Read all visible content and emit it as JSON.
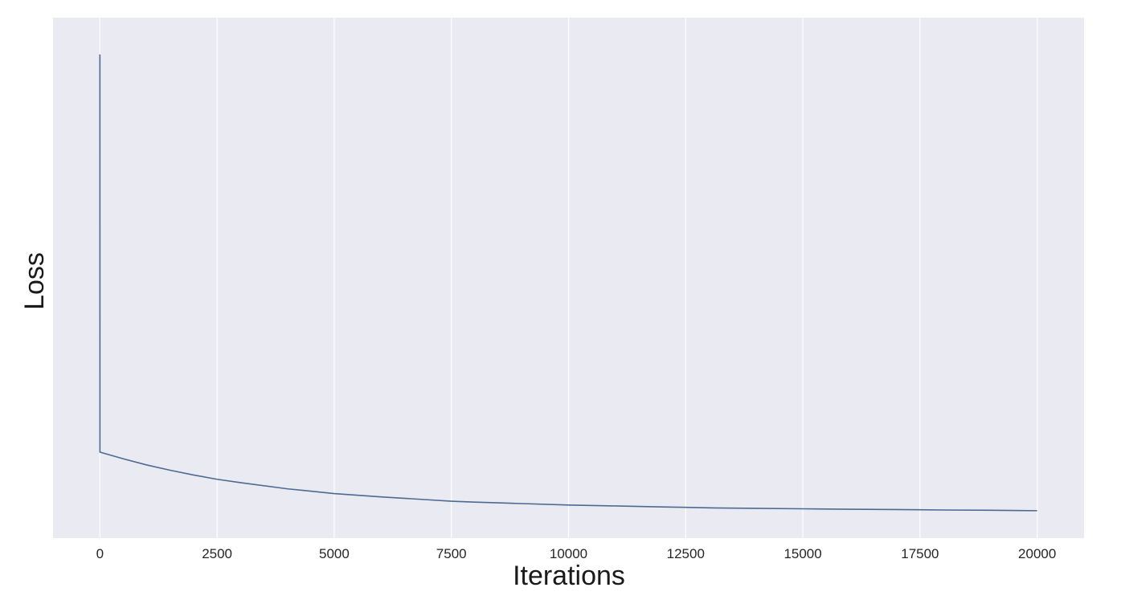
{
  "chart_data": {
    "type": "line",
    "title": "",
    "xlabel": "Iterations",
    "ylabel": "Loss",
    "xlim": [
      -1000,
      21000
    ],
    "ylim": [
      0,
      1
    ],
    "x_ticks": [
      0,
      2500,
      5000,
      7500,
      10000,
      12500,
      15000,
      17500,
      20000
    ],
    "x_tick_labels": [
      "0",
      "2500",
      "5000",
      "7500",
      "10000",
      "12500",
      "15000",
      "17500",
      "20000"
    ],
    "y_tick_labels_shown": false,
    "grid": "vertical",
    "legend": "none",
    "colors": {
      "plot_background": "#eaeaf2",
      "grid": "#ffffff",
      "line": "#4c6a92"
    },
    "series": [
      {
        "x": [
          0,
          1,
          500,
          1000,
          1500,
          2000,
          2500,
          3000,
          4000,
          5000,
          6000,
          7000,
          7500,
          8000,
          9000,
          10000,
          11000,
          12000,
          12500,
          13000,
          14000,
          15000,
          16000,
          17000,
          17500,
          18000,
          19000,
          20000
        ],
        "y": [
          0.97,
          0.135,
          0.121,
          0.108,
          0.097,
          0.087,
          0.078,
          0.071,
          0.058,
          0.048,
          0.041,
          0.035,
          0.032,
          0.03,
          0.027,
          0.024,
          0.022,
          0.02,
          0.019,
          0.018,
          0.017,
          0.016,
          0.015,
          0.0145,
          0.014,
          0.0135,
          0.013,
          0.012
        ]
      }
    ]
  }
}
